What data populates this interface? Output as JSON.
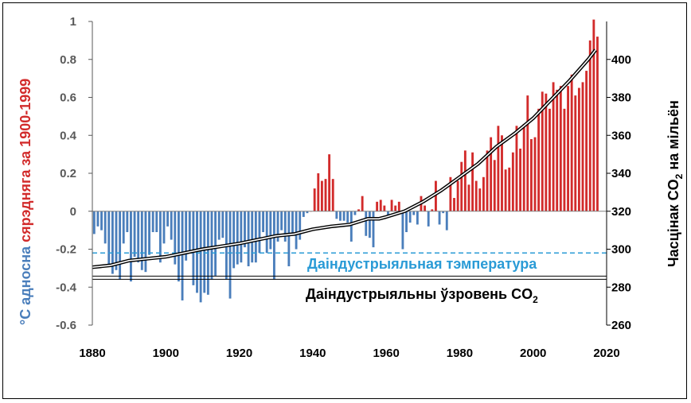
{
  "chart_data": {
    "type": "bar",
    "left_axis": {
      "title_parts": [
        {
          "text": "°C адносна ",
          "color": "#4a7ebb"
        },
        {
          "text": "сярэдняга за 1900-1999",
          "color": "#d22b2b"
        }
      ],
      "ylim": [
        -0.6,
        1.0
      ],
      "ticks": [
        "-0.6",
        "-0.4",
        "-0.2",
        "0",
        "0.2",
        "0.4",
        "0.6",
        "0.8",
        "1"
      ]
    },
    "right_axis": {
      "title_main": "Часцінак CO",
      "title_sub": "2",
      "title_tail": " на мільён",
      "ylim": [
        260,
        420
      ],
      "ticks": [
        "260",
        "280",
        "300",
        "320",
        "340",
        "360",
        "380",
        "400"
      ]
    },
    "x_axis": {
      "xlim": [
        1880,
        2020
      ],
      "ticks": [
        "1880",
        "1900",
        "1920",
        "1940",
        "1960",
        "1980",
        "2000",
        "2020"
      ]
    },
    "colors": {
      "negative": "#4a7ebb",
      "positive": "#d22b2b",
      "preindustrial_temp": "#2a9bd6",
      "co2_line": "#000000"
    },
    "annotations": {
      "preindustrial_temperature": {
        "label": "Даіндустрыяльная тэмпература",
        "value": -0.22
      },
      "preindustrial_co2": {
        "label_main": "Даіндустрыяльны ўзровень CO",
        "label_sub": "2",
        "value": 285
      }
    },
    "series": [
      {
        "type": "bar",
        "years": [
          1880,
          1881,
          1882,
          1883,
          1884,
          1885,
          1886,
          1887,
          1888,
          1889,
          1890,
          1891,
          1892,
          1893,
          1894,
          1895,
          1896,
          1897,
          1898,
          1899,
          1900,
          1901,
          1902,
          1903,
          1904,
          1905,
          1906,
          1907,
          1908,
          1909,
          1910,
          1911,
          1912,
          1913,
          1914,
          1915,
          1916,
          1917,
          1918,
          1919,
          1920,
          1921,
          1922,
          1923,
          1924,
          1925,
          1926,
          1927,
          1928,
          1929,
          1930,
          1931,
          1932,
          1933,
          1934,
          1935,
          1936,
          1937,
          1938,
          1939,
          1940,
          1941,
          1942,
          1943,
          1944,
          1945,
          1946,
          1947,
          1948,
          1949,
          1950,
          1951,
          1952,
          1953,
          1954,
          1955,
          1956,
          1957,
          1958,
          1959,
          1960,
          1961,
          1962,
          1963,
          1964,
          1965,
          1966,
          1967,
          1968,
          1969,
          1970,
          1971,
          1972,
          1973,
          1974,
          1975,
          1976,
          1977,
          1978,
          1979,
          1980,
          1981,
          1982,
          1983,
          1984,
          1985,
          1986,
          1987,
          1988,
          1989,
          1990,
          1991,
          1992,
          1993,
          1994,
          1995,
          1996,
          1997,
          1998,
          1999,
          2000,
          2001,
          2002,
          2003,
          2004,
          2005,
          2006,
          2007,
          2008,
          2009,
          2010,
          2011,
          2012,
          2013,
          2014,
          2015,
          2016,
          2017
        ],
        "values": [
          -0.12,
          -0.08,
          -0.1,
          -0.17,
          -0.28,
          -0.33,
          -0.31,
          -0.36,
          -0.17,
          -0.11,
          -0.37,
          -0.24,
          -0.27,
          -0.31,
          -0.32,
          -0.23,
          -0.11,
          -0.11,
          -0.27,
          -0.17,
          -0.08,
          -0.15,
          -0.28,
          -0.37,
          -0.47,
          -0.26,
          -0.22,
          -0.39,
          -0.43,
          -0.48,
          -0.43,
          -0.44,
          -0.36,
          -0.34,
          -0.15,
          -0.14,
          -0.36,
          -0.46,
          -0.3,
          -0.28,
          -0.27,
          -0.19,
          -0.29,
          -0.27,
          -0.27,
          -0.22,
          -0.11,
          -0.22,
          -0.2,
          -0.36,
          -0.16,
          -0.1,
          -0.16,
          -0.29,
          -0.13,
          -0.2,
          -0.15,
          -0.03,
          -0.01,
          0.0,
          0.12,
          0.2,
          0.16,
          0.17,
          0.3,
          0.17,
          -0.04,
          -0.05,
          -0.05,
          -0.06,
          -0.16,
          -0.02,
          0.01,
          0.08,
          -0.13,
          -0.14,
          -0.19,
          0.05,
          0.06,
          0.03,
          -0.03,
          0.06,
          0.03,
          0.05,
          -0.2,
          -0.11,
          -0.06,
          -0.02,
          -0.07,
          0.08,
          0.03,
          -0.08,
          0.01,
          0.16,
          -0.07,
          -0.01,
          -0.1,
          0.18,
          0.07,
          0.16,
          0.26,
          0.32,
          0.14,
          0.31,
          0.16,
          0.12,
          0.18,
          0.32,
          0.39,
          0.27,
          0.45,
          0.4,
          0.22,
          0.23,
          0.31,
          0.45,
          0.33,
          0.46,
          0.61,
          0.38,
          0.39,
          0.54,
          0.63,
          0.62,
          0.54,
          0.68,
          0.64,
          0.66,
          0.54,
          0.66,
          0.72,
          0.61,
          0.65,
          0.68,
          0.74,
          0.9,
          1.01,
          0.92
        ]
      },
      {
        "type": "line",
        "name": "CO2",
        "years": [
          1880,
          1885,
          1890,
          1895,
          1900,
          1905,
          1910,
          1915,
          1920,
          1925,
          1930,
          1935,
          1940,
          1945,
          1950,
          1955,
          1958,
          1960,
          1965,
          1970,
          1975,
          1980,
          1985,
          1990,
          1995,
          2000,
          2005,
          2010,
          2015,
          2017
        ],
        "values": [
          290.5,
          291.5,
          294,
          295,
          296,
          298,
          300,
          301.5,
          303,
          305,
          307,
          308,
          310.5,
          312,
          313,
          316,
          316,
          317,
          320,
          325,
          331,
          338,
          345,
          354,
          361,
          369,
          379,
          389,
          400,
          405
        ]
      }
    ]
  }
}
